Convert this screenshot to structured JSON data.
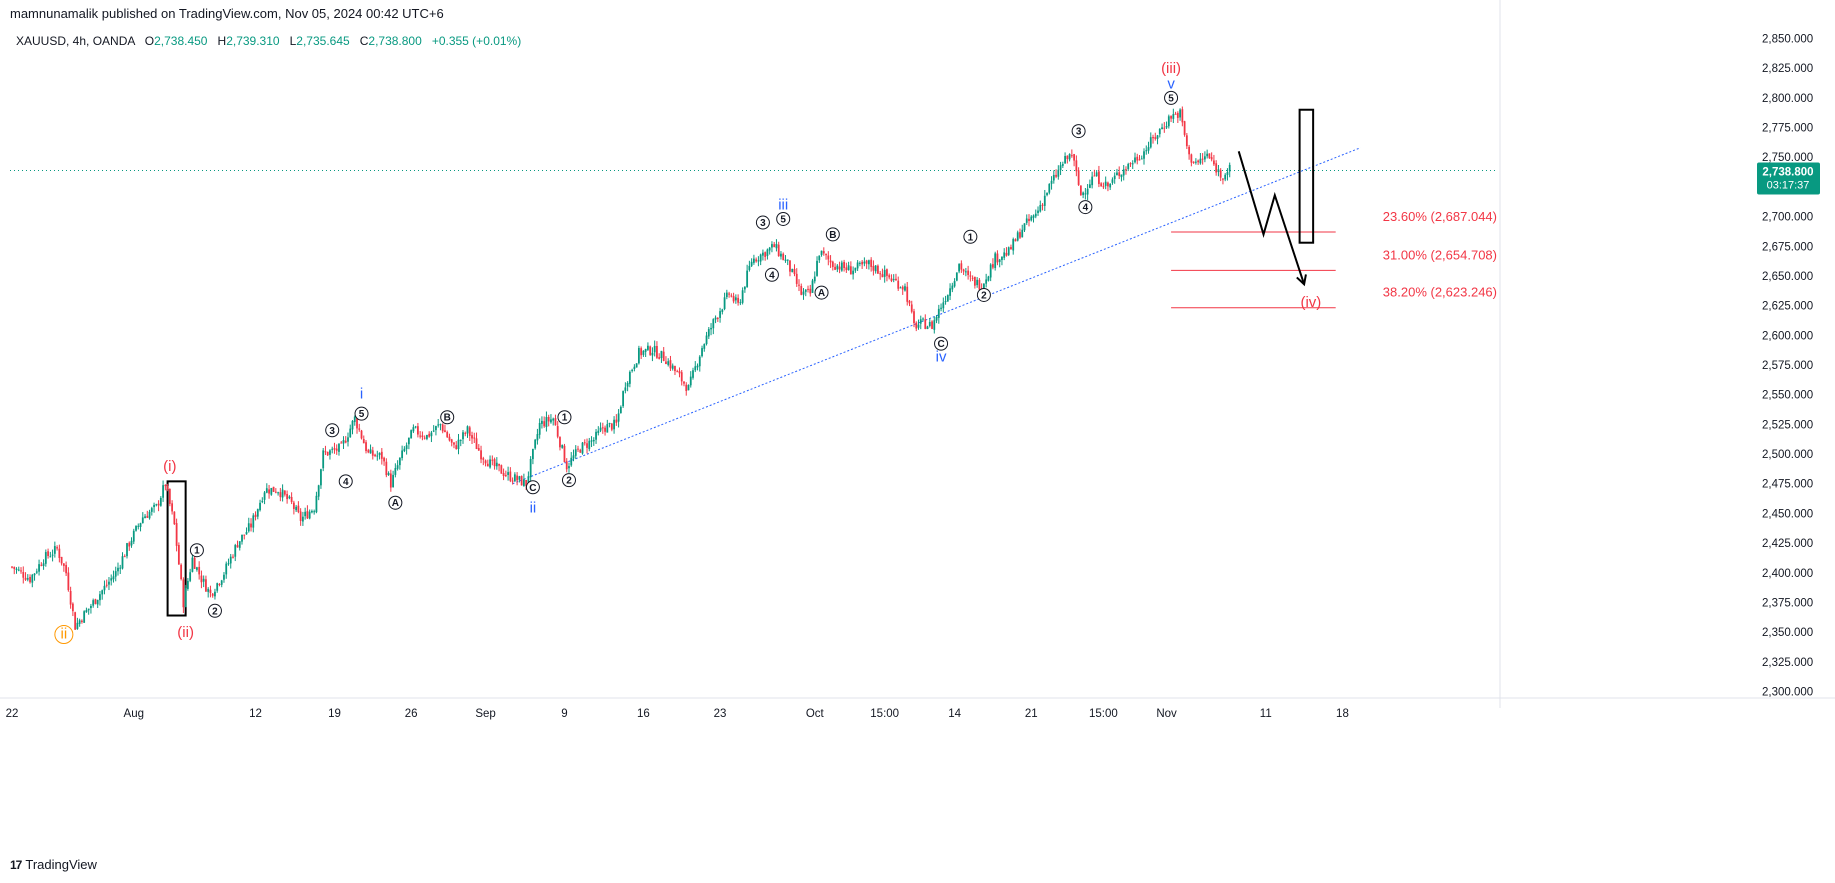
{
  "header": {
    "published": "mamnunamalik published on TradingView.com, Nov 05, 2024 00:42 UTC+6",
    "symbol_info": "XAUUSD, 4h, OANDA",
    "o_label": "O",
    "o_value": "2,738.450",
    "h_label": "H",
    "h_value": "2,739.310",
    "l_label": "L",
    "l_value": "2,735.645",
    "c_label": "C",
    "c_value": "2,738.800",
    "change": "+0.355 (+0.01%)"
  },
  "price_badge": {
    "price": "2,738.800",
    "countdown": "03:17:37"
  },
  "footer": {
    "brand": "TradingView",
    "logo_glyph": "17"
  },
  "colors": {
    "up": "#089981",
    "down": "#f23645",
    "blue": "#2962ff",
    "orange": "#ff9800"
  },
  "chart_data": {
    "type": "candlestick",
    "y_ticks": [
      "2,850.000",
      "2,825.000",
      "2,800.000",
      "2,775.000",
      "2,750.000",
      "2,725.000",
      "2,700.000",
      "2,675.000",
      "2,650.000",
      "2,625.000",
      "2,600.000",
      "2,575.000",
      "2,550.000",
      "2,525.000",
      "2,500.000",
      "2,475.000",
      "2,450.000",
      "2,425.000",
      "2,400.000",
      "2,375.000",
      "2,350.000",
      "2,325.000",
      "2,300.000"
    ],
    "y_tick_values": [
      2850,
      2825,
      2800,
      2775,
      2750,
      2725,
      2700,
      2675,
      2650,
      2625,
      2600,
      2575,
      2550,
      2525,
      2500,
      2475,
      2450,
      2425,
      2400,
      2375,
      2350,
      2325,
      2300
    ],
    "ylim": [
      2287,
      2863
    ],
    "x_ticks": [
      {
        "label": "22",
        "bar": 0
      },
      {
        "label": "Aug",
        "bar": 54
      },
      {
        "label": "12",
        "bar": 108
      },
      {
        "label": "19",
        "bar": 143
      },
      {
        "label": "26",
        "bar": 177
      },
      {
        "label": "Sep",
        "bar": 210
      },
      {
        "label": "9",
        "bar": 245
      },
      {
        "label": "16",
        "bar": 280
      },
      {
        "label": "23",
        "bar": 314
      },
      {
        "label": "Oct",
        "bar": 356
      },
      {
        "label": "15:00",
        "bar": 387
      },
      {
        "label": "14",
        "bar": 418
      },
      {
        "label": "21",
        "bar": 452
      },
      {
        "label": "15:00",
        "bar": 484
      },
      {
        "label": "Nov",
        "bar": 512
      },
      {
        "label": "11",
        "bar": 556
      },
      {
        "label": "18",
        "bar": 590
      }
    ],
    "anchors": [
      [
        0,
        2405
      ],
      [
        8,
        2395
      ],
      [
        14,
        2412
      ],
      [
        20,
        2420
      ],
      [
        24,
        2400
      ],
      [
        28,
        2355
      ],
      [
        32,
        2365
      ],
      [
        40,
        2385
      ],
      [
        46,
        2400
      ],
      [
        52,
        2425
      ],
      [
        58,
        2447
      ],
      [
        64,
        2455
      ],
      [
        68,
        2475
      ],
      [
        72,
        2440
      ],
      [
        76,
        2375
      ],
      [
        80,
        2412
      ],
      [
        84,
        2395
      ],
      [
        88,
        2382
      ],
      [
        94,
        2400
      ],
      [
        100,
        2425
      ],
      [
        106,
        2440
      ],
      [
        112,
        2470
      ],
      [
        118,
        2470
      ],
      [
        124,
        2458
      ],
      [
        128,
        2445
      ],
      [
        134,
        2455
      ],
      [
        138,
        2500
      ],
      [
        146,
        2505
      ],
      [
        152,
        2530
      ],
      [
        158,
        2500
      ],
      [
        164,
        2498
      ],
      [
        168,
        2475
      ],
      [
        172,
        2495
      ],
      [
        178,
        2520
      ],
      [
        184,
        2515
      ],
      [
        190,
        2525
      ],
      [
        196,
        2505
      ],
      [
        202,
        2520
      ],
      [
        208,
        2500
      ],
      [
        212,
        2492
      ],
      [
        220,
        2482
      ],
      [
        228,
        2475
      ],
      [
        234,
        2525
      ],
      [
        240,
        2530
      ],
      [
        246,
        2490
      ],
      [
        252,
        2505
      ],
      [
        258,
        2512
      ],
      [
        262,
        2522
      ],
      [
        268,
        2525
      ],
      [
        272,
        2560
      ],
      [
        278,
        2585
      ],
      [
        284,
        2588
      ],
      [
        290,
        2580
      ],
      [
        296,
        2565
      ],
      [
        300,
        2555
      ],
      [
        306,
        2590
      ],
      [
        312,
        2615
      ],
      [
        318,
        2635
      ],
      [
        322,
        2625
      ],
      [
        328,
        2663
      ],
      [
        334,
        2670
      ],
      [
        338,
        2675
      ],
      [
        344,
        2660
      ],
      [
        350,
        2635
      ],
      [
        354,
        2635
      ],
      [
        358,
        2670
      ],
      [
        364,
        2660
      ],
      [
        372,
        2655
      ],
      [
        380,
        2660
      ],
      [
        388,
        2650
      ],
      [
        396,
        2640
      ],
      [
        400,
        2608
      ],
      [
        404,
        2610
      ],
      [
        408,
        2608
      ],
      [
        412,
        2625
      ],
      [
        416,
        2640
      ],
      [
        420,
        2660
      ],
      [
        424,
        2648
      ],
      [
        430,
        2642
      ],
      [
        436,
        2665
      ],
      [
        442,
        2670
      ],
      [
        448,
        2690
      ],
      [
        454,
        2702
      ],
      [
        460,
        2725
      ],
      [
        466,
        2745
      ],
      [
        470,
        2753
      ],
      [
        474,
        2718
      ],
      [
        480,
        2735
      ],
      [
        486,
        2725
      ],
      [
        490,
        2735
      ],
      [
        496,
        2745
      ],
      [
        502,
        2755
      ],
      [
        508,
        2770
      ],
      [
        514,
        2785
      ],
      [
        518,
        2787
      ],
      [
        522,
        2750
      ],
      [
        526,
        2745
      ],
      [
        530,
        2752
      ],
      [
        536,
        2735
      ],
      [
        540,
        2740
      ]
    ],
    "seed": 7
  },
  "overlays": {
    "trendline": {
      "from": [
        222,
        2475
      ],
      "to": [
        598,
        2758
      ]
    },
    "current_price": 2738.8,
    "fib_levels": [
      {
        "label": "23.60% (2,687.044)",
        "value": 2687.044
      },
      {
        "label": "31.00% (2,654.708)",
        "value": 2654.708
      },
      {
        "label": "38.20% (2,623.246)",
        "value": 2623.246
      }
    ],
    "fib_x_range": [
      514,
      587
    ],
    "rectangles": [
      {
        "x_bars": [
          69,
          77
        ],
        "y": [
          2364,
          2477
        ]
      },
      {
        "x_bars": [
          571,
          577
        ],
        "y": [
          2678,
          2790
        ]
      }
    ],
    "projection": [
      [
        544,
        2755
      ],
      [
        555,
        2685
      ],
      [
        560,
        2718
      ],
      [
        573,
        2643
      ]
    ],
    "wave_labels": [
      {
        "text": "ii",
        "bar": 23,
        "price": 2348,
        "style": "orange-circle"
      },
      {
        "text": "(i)",
        "bar": 70,
        "price": 2490,
        "color": "red"
      },
      {
        "text": "(ii)",
        "bar": 77,
        "price": 2350,
        "color": "red"
      },
      {
        "text": "i",
        "bar": 155,
        "price": 2551,
        "color": "blue"
      },
      {
        "text": "ii",
        "bar": 231,
        "price": 2455,
        "color": "blue"
      },
      {
        "text": "iii",
        "bar": 342,
        "price": 2710,
        "color": "blue"
      },
      {
        "text": "iv",
        "bar": 412,
        "price": 2582,
        "color": "blue"
      },
      {
        "text": "(iii)",
        "bar": 514,
        "price": 2825,
        "color": "red"
      },
      {
        "text": "v",
        "bar": 514,
        "price": 2812,
        "color": "blue"
      },
      {
        "text": "(iv)",
        "bar": 576,
        "price": 2628,
        "color": "red"
      }
    ],
    "circle_labels": [
      {
        "text": "1",
        "bar": 82,
        "price": 2419
      },
      {
        "text": "2",
        "bar": 90,
        "price": 2368
      },
      {
        "text": "3",
        "bar": 142,
        "price": 2520
      },
      {
        "text": "4",
        "bar": 148,
        "price": 2477
      },
      {
        "text": "5",
        "bar": 155,
        "price": 2534
      },
      {
        "text": "A",
        "bar": 170,
        "price": 2459
      },
      {
        "text": "B",
        "bar": 193,
        "price": 2531
      },
      {
        "text": "C",
        "bar": 231,
        "price": 2472
      },
      {
        "text": "1",
        "bar": 245,
        "price": 2531
      },
      {
        "text": "2",
        "bar": 247,
        "price": 2478
      },
      {
        "text": "3",
        "bar": 333,
        "price": 2695
      },
      {
        "text": "4",
        "bar": 337,
        "price": 2651
      },
      {
        "text": "5",
        "bar": 342,
        "price": 2698
      },
      {
        "text": "A",
        "bar": 359,
        "price": 2636
      },
      {
        "text": "B",
        "bar": 364,
        "price": 2685
      },
      {
        "text": "C",
        "bar": 412,
        "price": 2593
      },
      {
        "text": "1",
        "bar": 425,
        "price": 2683
      },
      {
        "text": "2",
        "bar": 431,
        "price": 2634
      },
      {
        "text": "3",
        "bar": 473,
        "price": 2772
      },
      {
        "text": "4",
        "bar": 476,
        "price": 2708
      },
      {
        "text": "5",
        "bar": 514,
        "price": 2800
      }
    ]
  }
}
